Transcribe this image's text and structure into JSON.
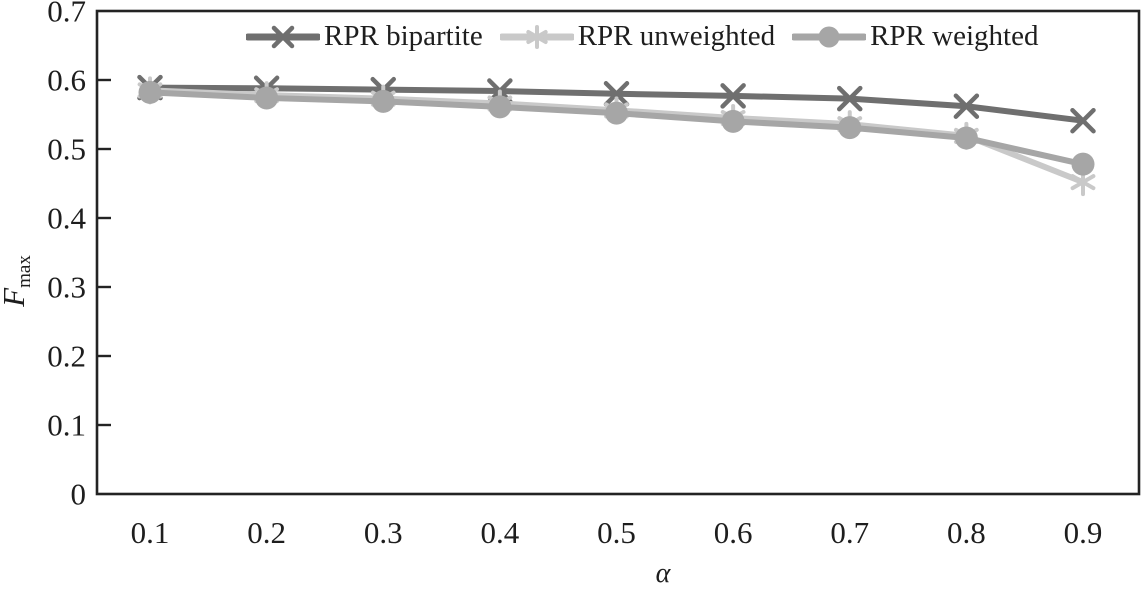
{
  "figure": {
    "y_axis_label": {
      "main": "F",
      "sub": "max"
    },
    "x_axis_label": "α"
  },
  "legend": [
    {
      "label": "RPR bipartite",
      "marker": "x",
      "color": "#6f6f6f"
    },
    {
      "label": "RPR unweighted",
      "marker": "asterisk",
      "color": "#c9c9c9"
    },
    {
      "label": "RPR weighted",
      "marker": "circle",
      "color": "#a6a6a6"
    }
  ],
  "chart_data": {
    "type": "line",
    "title": "",
    "xlabel": "α",
    "ylabel": "F_max",
    "x": [
      0.1,
      0.2,
      0.3,
      0.4,
      0.5,
      0.6,
      0.7,
      0.8,
      0.9
    ],
    "xtick_labels": [
      "0.1",
      "0.2",
      "0.3",
      "0.4",
      "0.5",
      "0.6",
      "0.7",
      "0.8",
      "0.9"
    ],
    "yticks": [
      0,
      0.1,
      0.2,
      0.3,
      0.4,
      0.5,
      0.6,
      0.7
    ],
    "ytick_labels": [
      "0",
      "0.1",
      "0.2",
      "0.3",
      "0.4",
      "0.5",
      "0.6",
      "0.7"
    ],
    "ylim": [
      0,
      0.7
    ],
    "grid": false,
    "legend_position": "top-inside",
    "series": [
      {
        "name": "RPR bipartite",
        "marker": "x",
        "color": "#6f6f6f",
        "values": [
          0.589,
          0.588,
          0.586,
          0.584,
          0.58,
          0.577,
          0.573,
          0.562,
          0.541
        ]
      },
      {
        "name": "RPR unweighted",
        "marker": "asterisk",
        "color": "#c9c9c9",
        "values": [
          0.585,
          0.578,
          0.573,
          0.566,
          0.556,
          0.545,
          0.536,
          0.519,
          0.452
        ]
      },
      {
        "name": "RPR weighted",
        "marker": "circle",
        "color": "#a6a6a6",
        "values": [
          0.582,
          0.574,
          0.569,
          0.561,
          0.552,
          0.54,
          0.531,
          0.516,
          0.478
        ]
      }
    ]
  },
  "frame_color": "#232323",
  "text_color": "#1e1e1e"
}
